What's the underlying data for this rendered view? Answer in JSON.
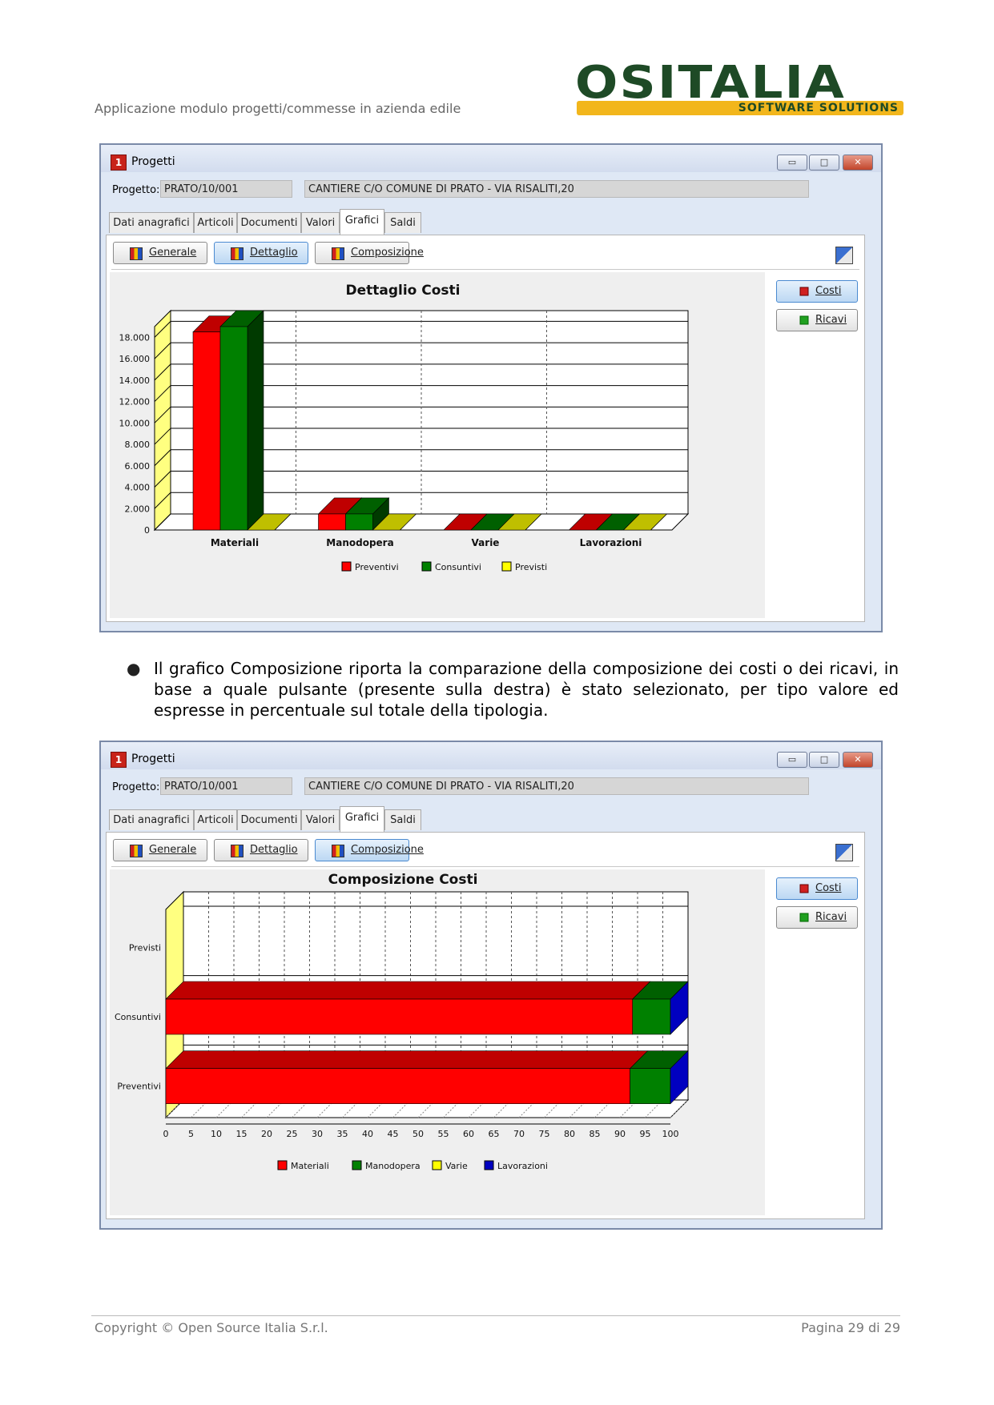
{
  "header": {
    "subtitle": "Applicazione modulo progetti/commesse in azienda edile",
    "logo_word": "OSITALIA",
    "logo_sub": "SOFTWARE SOLUTIONS"
  },
  "colors": {
    "red": "#ff0000",
    "green": "#008000",
    "yellow": "#ffff66",
    "blue": "#0000c0",
    "logo_green": "#1e4a26",
    "logo_orange": "#f2b61c"
  },
  "window1": {
    "title": "Progetti",
    "app_icon": "1",
    "project_label": "Progetto:",
    "project_code": "PRATO/10/001",
    "project_desc": "CANTIERE C/O COMUNE DI PRATO - VIA RISALITI,20",
    "tabs": [
      "Dati anagrafici",
      "Articoli",
      "Documenti",
      "Valori",
      "Grafici",
      "Saldi"
    ],
    "active_tab": "Grafici",
    "buttons": {
      "generale": "Generale",
      "dettaglio": "Dettaglio",
      "composizione": "Composizione"
    },
    "active_button": "Dettaglio",
    "side_buttons": {
      "costi": "Costi",
      "ricavi": "Ricavi"
    },
    "active_side": "Costi"
  },
  "window2": {
    "title": "Progetti",
    "app_icon": "1",
    "project_label": "Progetto:",
    "project_code": "PRATO/10/001",
    "project_desc": "CANTIERE C/O COMUNE DI PRATO - VIA RISALITI,20",
    "tabs": [
      "Dati anagrafici",
      "Articoli",
      "Documenti",
      "Valori",
      "Grafici",
      "Saldi"
    ],
    "active_tab": "Grafici",
    "buttons": {
      "generale": "Generale",
      "dettaglio": "Dettaglio",
      "composizione": "Composizione"
    },
    "active_button": "Composizione",
    "side_buttons": {
      "costi": "Costi",
      "ricavi": "Ricavi"
    },
    "active_side": "Costi"
  },
  "bullet": "Il grafico Composizione riporta la comparazione della composizione dei costi o dei ricavi, in base a quale pulsante (presente sulla destra) è stato selezionato, per tipo valore ed espresse in percentuale sul totale della tipologia.",
  "footer": {
    "left": "Copyright © Open Source Italia S.r.l.",
    "right": "Pagina 29 di 29"
  },
  "chart_data": [
    {
      "type": "bar",
      "title": "Dettaglio Costi",
      "categories": [
        "Materiali",
        "Manodopera",
        "Varie",
        "Lavorazioni"
      ],
      "series": [
        {
          "name": "Preventivi",
          "color": "#ff0000",
          "values": [
            18500,
            1500,
            0,
            0
          ]
        },
        {
          "name": "Consuntivi",
          "color": "#008000",
          "values": [
            19000,
            1500,
            0,
            0
          ]
        },
        {
          "name": "Previsti",
          "color": "#ffff00",
          "values": [
            0,
            0,
            0,
            0
          ]
        }
      ],
      "yticks": [
        "0",
        "2.000",
        "4.000",
        "6.000",
        "8.000",
        "10.000",
        "12.000",
        "14.000",
        "16.000",
        "18.000"
      ],
      "ylim": [
        0,
        19000
      ],
      "legend": "bottom"
    },
    {
      "type": "bar",
      "orientation": "horizontal",
      "stacked": true,
      "title": "Composizione Costi",
      "categories": [
        "Previsti",
        "Consuntivi",
        "Preventivi"
      ],
      "series": [
        {
          "name": "Materiali",
          "color": "#ff0000",
          "values": [
            0,
            92.5,
            92
          ]
        },
        {
          "name": "Manodopera",
          "color": "#008000",
          "values": [
            0,
            7.5,
            8
          ]
        },
        {
          "name": "Varie",
          "color": "#ffff00",
          "values": [
            0,
            0,
            0
          ]
        },
        {
          "name": "Lavorazioni",
          "color": "#0000c0",
          "values": [
            0,
            0,
            0
          ]
        }
      ],
      "xticks": [
        "0",
        "5",
        "10",
        "15",
        "20",
        "25",
        "30",
        "35",
        "40",
        "45",
        "50",
        "55",
        "60",
        "65",
        "70",
        "75",
        "80",
        "85",
        "90",
        "95",
        "100"
      ],
      "xlim": [
        0,
        100
      ],
      "legend": "bottom"
    }
  ]
}
